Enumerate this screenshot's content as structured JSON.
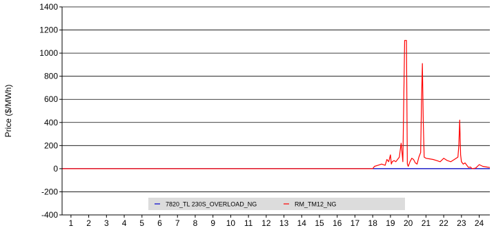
{
  "chart_data": {
    "type": "line",
    "title": "",
    "xlabel": "",
    "ylabel": "Price ($/MWh)",
    "xlim": [
      0.5,
      24.6
    ],
    "ylim": [
      -400,
      1400
    ],
    "yticks": [
      -400,
      -200,
      0,
      200,
      400,
      600,
      800,
      1000,
      1200,
      1400
    ],
    "xticks": [
      1,
      2,
      3,
      4,
      5,
      6,
      7,
      8,
      9,
      10,
      11,
      12,
      13,
      14,
      15,
      16,
      17,
      18,
      19,
      20,
      21,
      22,
      23,
      24
    ],
    "grid": "horizontal",
    "legend_position": "bottom-center",
    "series": [
      {
        "name": "7820_TL 230S_OVERLOAD_NG",
        "color": "#0000cc",
        "x": [
          0.5,
          24.6
        ],
        "y": [
          0,
          0
        ]
      },
      {
        "name": "RM_TM12_NG",
        "color": "#ff0000",
        "x": [
          0.5,
          18.0,
          18.1,
          18.3,
          18.5,
          18.7,
          18.8,
          18.9,
          19.0,
          19.05,
          19.1,
          19.2,
          19.3,
          19.4,
          19.5,
          19.6,
          19.65,
          19.7,
          19.8,
          19.85,
          19.9,
          19.95,
          20.0,
          20.1,
          20.2,
          20.3,
          20.4,
          20.5,
          20.6,
          20.7,
          20.75,
          20.8,
          20.85,
          20.9,
          21.0,
          21.2,
          21.4,
          21.6,
          21.8,
          22.0,
          22.2,
          22.4,
          22.6,
          22.8,
          22.85,
          22.9,
          22.95,
          23.0,
          23.1,
          23.2,
          23.3,
          23.4,
          23.5,
          23.6,
          23.8,
          24.0,
          24.2,
          24.4,
          24.6
        ],
        "y": [
          0,
          0,
          20,
          30,
          40,
          30,
          80,
          60,
          120,
          40,
          60,
          70,
          60,
          80,
          100,
          220,
          140,
          60,
          1110,
          1110,
          1110,
          40,
          20,
          60,
          90,
          80,
          50,
          40,
          100,
          140,
          600,
          910,
          400,
          100,
          90,
          85,
          80,
          70,
          60,
          90,
          70,
          60,
          80,
          100,
          200,
          420,
          120,
          60,
          40,
          50,
          30,
          10,
          15,
          0,
          5,
          35,
          20,
          15,
          10
        ]
      }
    ]
  }
}
